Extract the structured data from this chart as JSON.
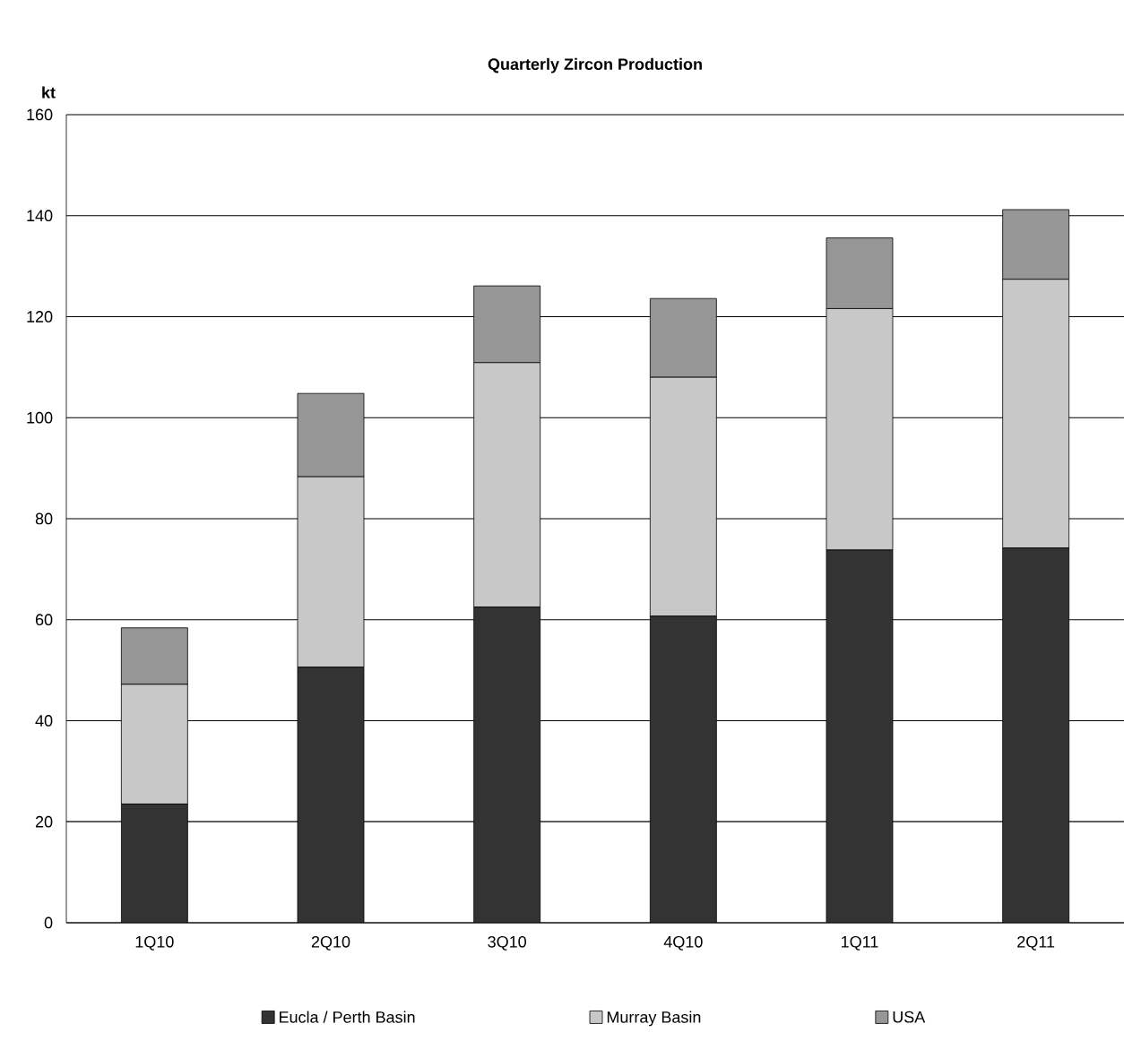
{
  "chart_data": {
    "type": "bar",
    "stacked": true,
    "title": "Quarterly Zircon Production",
    "ylabel": "kt",
    "categories": [
      "1Q10",
      "2Q10",
      "3Q10",
      "4Q10",
      "1Q11",
      "2Q11"
    ],
    "series": [
      {
        "name": "Eucla / Perth Basin",
        "color": "#333333",
        "values": [
          23.5,
          50.6,
          62.5,
          60.7,
          73.8,
          74.2
        ]
      },
      {
        "name": "Murray Basin",
        "color": "#c8c8c8",
        "values": [
          23.7,
          37.7,
          48.4,
          47.3,
          47.8,
          53.2
        ]
      },
      {
        "name": "USA",
        "color": "#969696",
        "values": [
          11.2,
          16.5,
          15.2,
          15.6,
          14.0,
          13.8
        ]
      }
    ],
    "ylim": [
      0,
      160
    ],
    "yticks": [
      0,
      20,
      40,
      60,
      80,
      100,
      120,
      140,
      160
    ],
    "grid": "y",
    "legend": "bottom"
  }
}
